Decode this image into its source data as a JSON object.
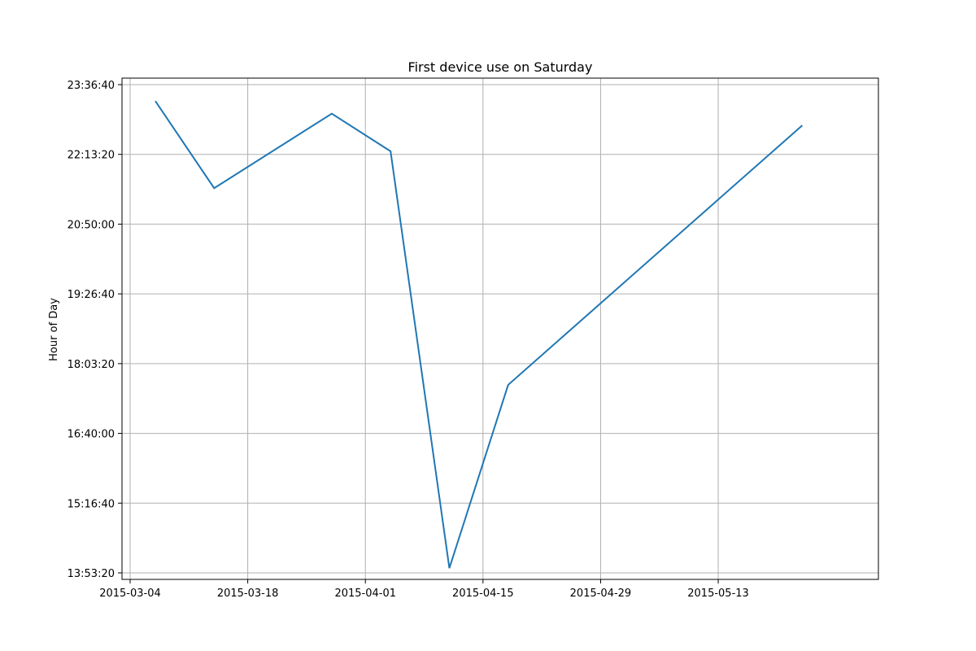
{
  "chart_data": {
    "type": "line",
    "title": "First device use on Saturday",
    "xlabel": "",
    "ylabel": "Hour of Day",
    "x_type": "date",
    "xlim": [
      "2015-03-04",
      "2015-05-28"
    ],
    "ylim": [
      "13:53:20",
      "23:36:40"
    ],
    "x_ticks": [
      "2015-03-04",
      "2015-03-18",
      "2015-04-01",
      "2015-04-15",
      "2015-04-29",
      "2015-05-13"
    ],
    "y_ticks": [
      "13:53:20",
      "15:16:40",
      "16:40:00",
      "18:03:20",
      "19:26:40",
      "20:50:00",
      "22:13:20",
      "23:36:40"
    ],
    "grid": true,
    "series": [
      {
        "color": "#1f77b4",
        "x": [
          "2015-03-07",
          "2015-03-14",
          "2015-03-28",
          "2015-04-04",
          "2015-04-11",
          "2015-04-18",
          "2015-05-23"
        ],
        "y": [
          "23:17:00",
          "21:33:00",
          "23:02:00",
          "22:17:00",
          "13:59:00",
          "17:38:00",
          "22:48:00"
        ]
      }
    ]
  }
}
